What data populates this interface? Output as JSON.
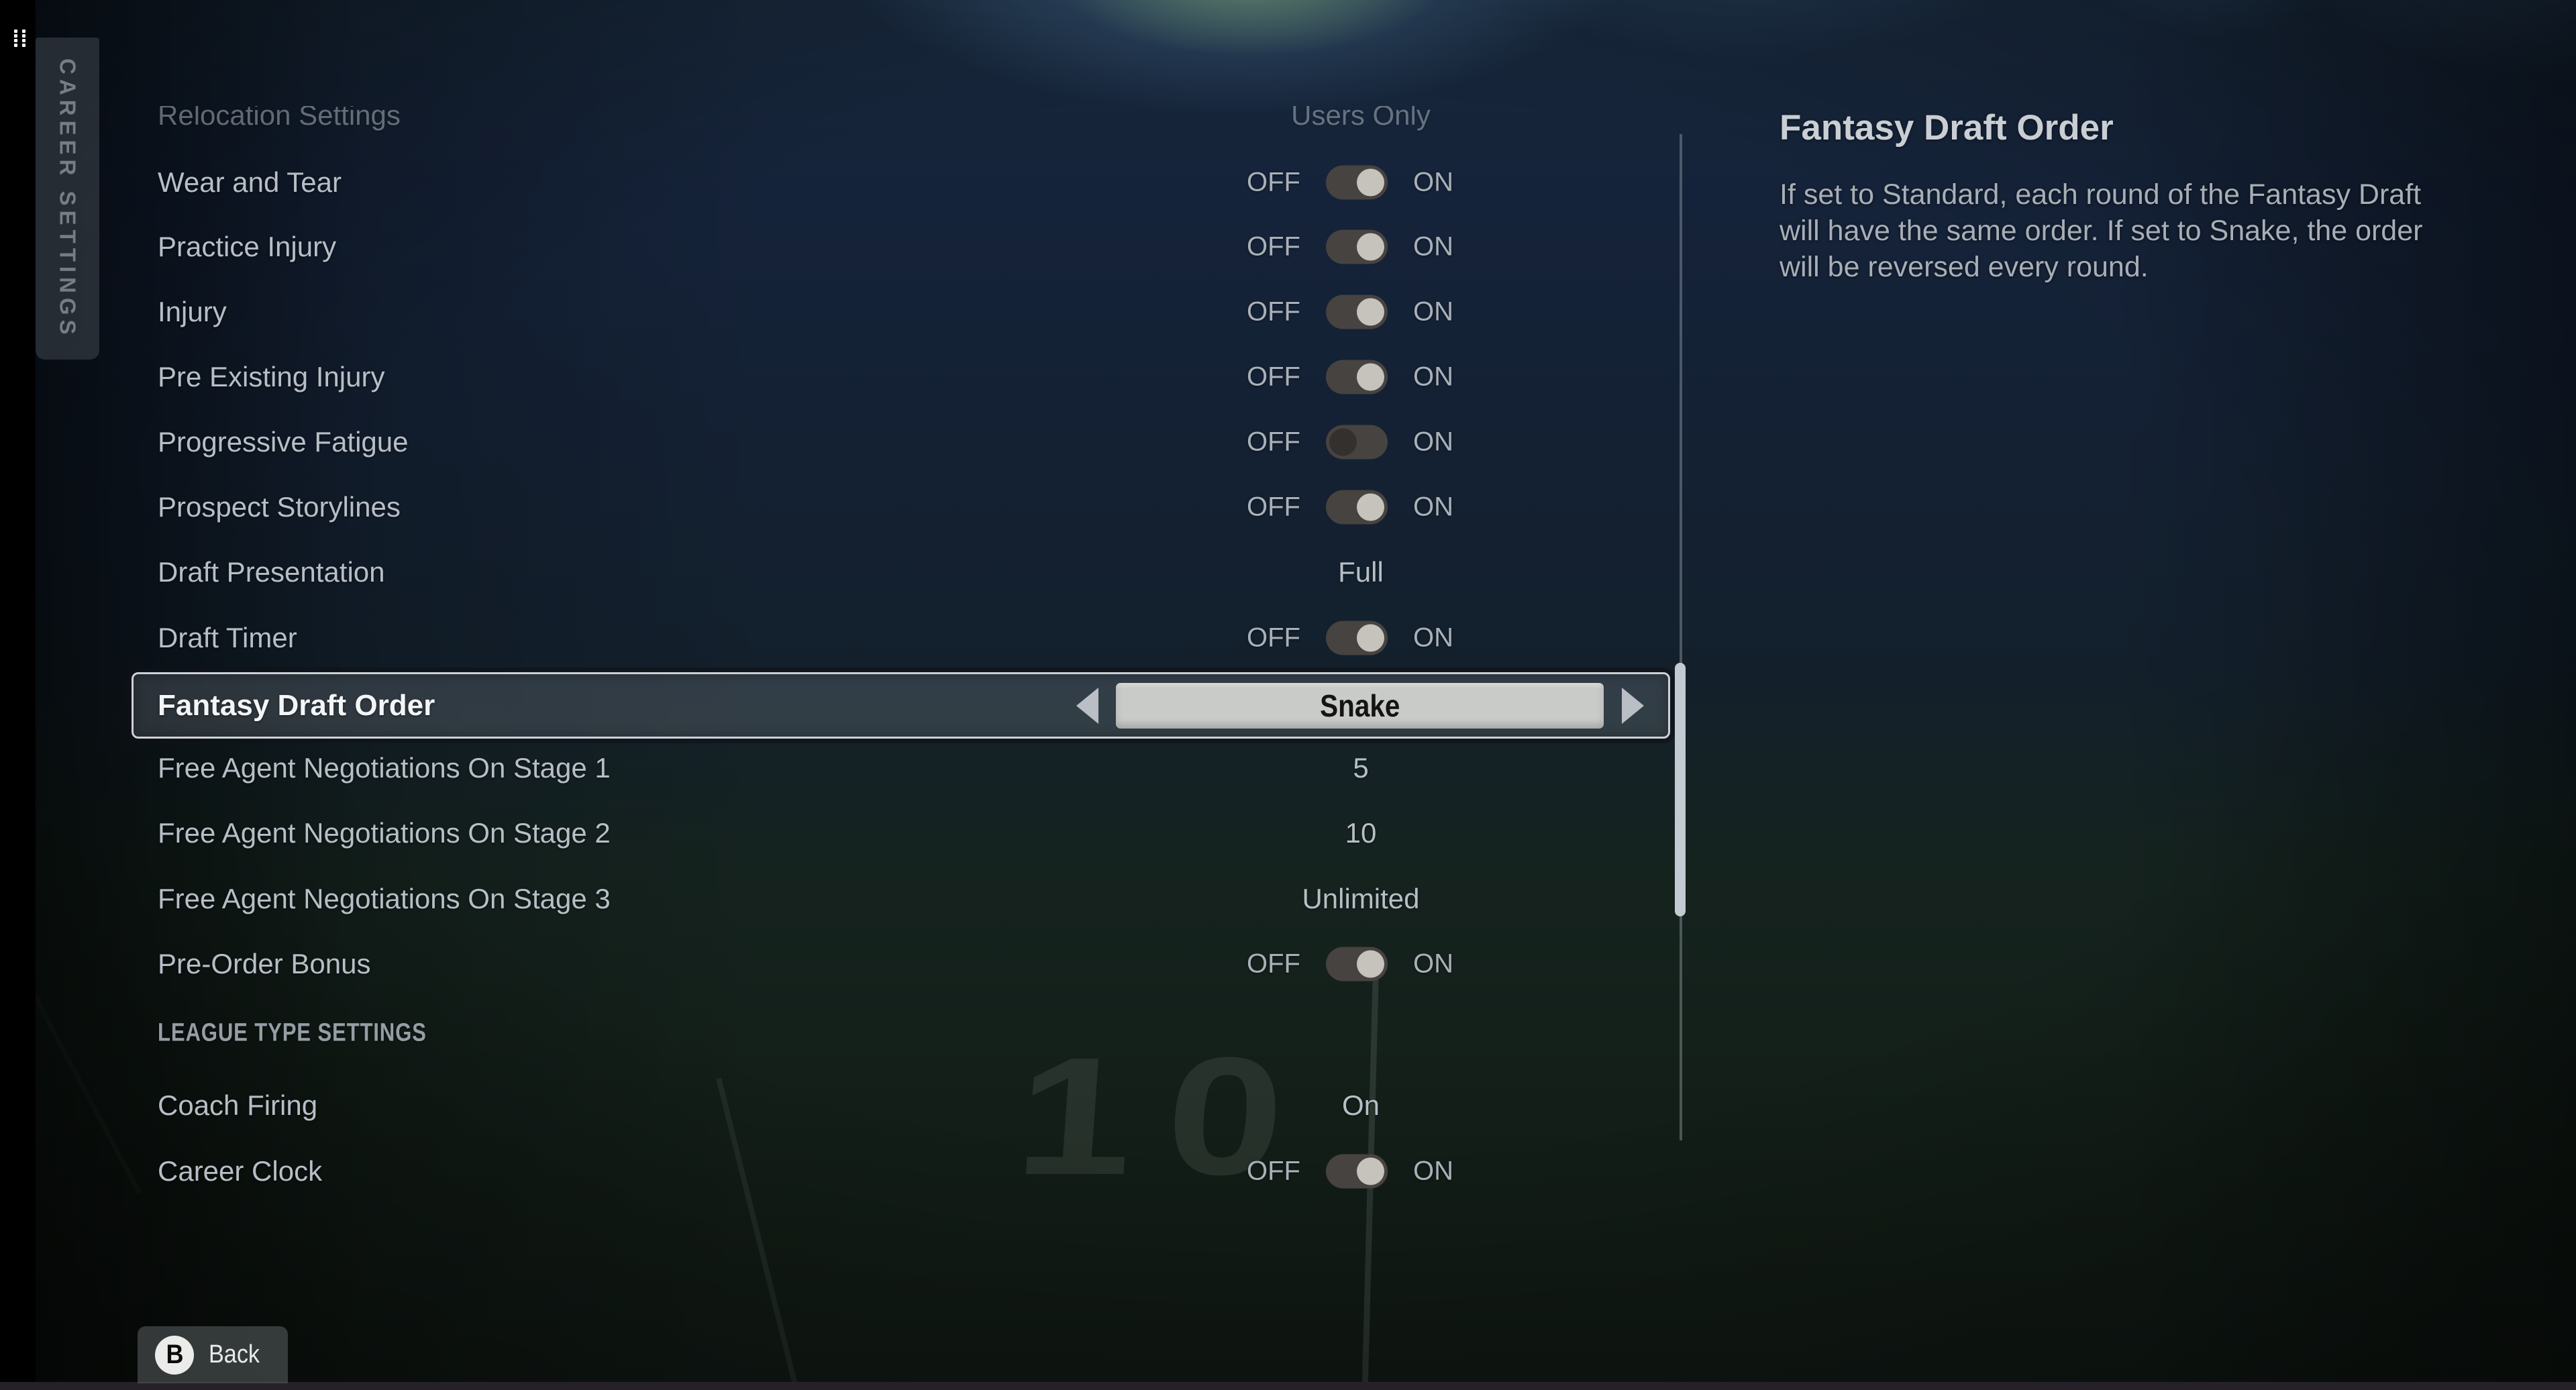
{
  "sidebar": {
    "tab_label": "CAREER SETTINGS"
  },
  "settings_list": {
    "partial_row": {
      "label": "Relocation Settings",
      "value": "Users Only"
    },
    "toggle_labels": {
      "off": "OFF",
      "on": "ON"
    },
    "rows": [
      {
        "label": "Wear and Tear",
        "type": "toggle",
        "state": "on"
      },
      {
        "label": "Practice Injury",
        "type": "toggle",
        "state": "on"
      },
      {
        "label": "Injury",
        "type": "toggle",
        "state": "on"
      },
      {
        "label": "Pre Existing Injury",
        "type": "toggle",
        "state": "on"
      },
      {
        "label": "Progressive Fatigue",
        "type": "toggle",
        "state": "off"
      },
      {
        "label": "Prospect Storylines",
        "type": "toggle",
        "state": "on"
      },
      {
        "label": "Draft Presentation",
        "type": "value",
        "value": "Full"
      },
      {
        "label": "Draft Timer",
        "type": "toggle",
        "state": "on"
      },
      {
        "label": "Fantasy Draft Order",
        "type": "spinner",
        "value": "Snake",
        "selected": true
      },
      {
        "label": "Free Agent Negotiations On Stage 1",
        "type": "value",
        "value": "5"
      },
      {
        "label": "Free Agent Negotiations On Stage 2",
        "type": "value",
        "value": "10"
      },
      {
        "label": "Free Agent Negotiations On Stage 3",
        "type": "value",
        "value": "Unlimited"
      },
      {
        "label": "Pre-Order Bonus",
        "type": "toggle",
        "state": "on"
      },
      {
        "label": "LEAGUE TYPE SETTINGS",
        "type": "section"
      },
      {
        "label": "Coach Firing",
        "type": "value",
        "value": "On"
      },
      {
        "label": "Career Clock",
        "type": "toggle",
        "state": "on"
      }
    ]
  },
  "info_panel": {
    "title": "Fantasy Draft Order",
    "description": "If set to Standard, each round of the Fantasy Draft will have the same order. If set to Snake, the order will be reversed every round."
  },
  "footer": {
    "back_key": "B",
    "back_label": "Back"
  },
  "field_decor": {
    "painted_number": "10"
  },
  "colors": {
    "background_top": "#17273a",
    "field_green": "#14201a",
    "toggle_track": "#474340",
    "toggle_knob_on": "#c6c3bc",
    "toggle_knob_off": "#34302d",
    "selected_border": "#ccd1d6",
    "option_box_bg": "#c9cbc8",
    "label_text": "#b7bec6",
    "info_title_text": "#c9ced4"
  }
}
